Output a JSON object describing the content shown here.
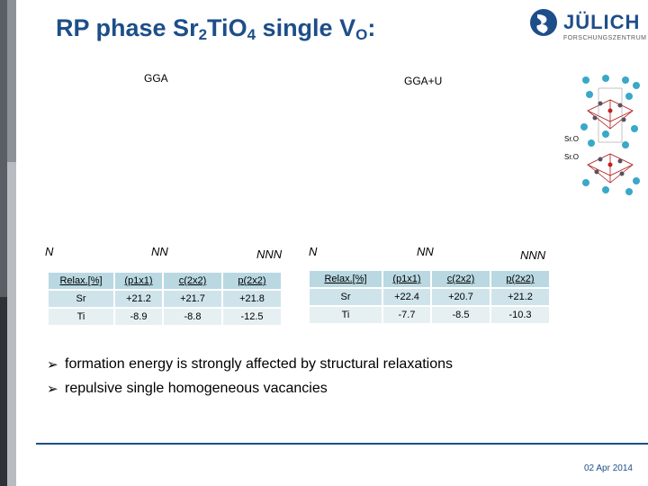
{
  "slide": {
    "title_main": "RP phase Sr",
    "title_sub1": "2",
    "title_mid1": "Ti",
    "title_mid2": "O",
    "title_sub2": "4",
    "title_rest": " single V",
    "title_sub3": "O",
    "title_colon": ":"
  },
  "logo": {
    "name": "JÜLICH",
    "subtitle": "FORSCHUNGSZENTRUM"
  },
  "labels": {
    "gga": "GGA",
    "ggau": "GGA+U",
    "sro_top": "Sr.O",
    "sro_bottom": "Sr.O",
    "n_left": "N",
    "nn_left": "NN",
    "nnn_left": "NNN",
    "n_right": "N",
    "nn_right": "NN",
    "nnn_right": "NNN"
  },
  "table_gga": {
    "header": [
      "Relax.[%]",
      "(p1x1)",
      "c(2x2)",
      "p(2x2)"
    ],
    "rows": [
      [
        "Sr",
        "+21.2",
        "+21.7",
        "+21.8"
      ],
      [
        "Ti",
        "-8.9",
        "-8.8",
        "-12.5"
      ]
    ]
  },
  "table_ggau": {
    "header": [
      "Relax.[%]",
      "(p1x1)",
      "c(2x2)",
      "p(2x2)"
    ],
    "rows": [
      [
        "Sr",
        "+22.4",
        "+20.7",
        "+21.2"
      ],
      [
        "Ti",
        "-7.7",
        "-8.5",
        "-10.3"
      ]
    ]
  },
  "bullets": [
    "formation energy is strongly affected by structural relaxations",
    "repulsive single homogeneous vacancies"
  ],
  "footer": {
    "date": "02 Apr 2014"
  },
  "colors": {
    "accent": "#1d4e89",
    "table_header": "#b9d8e2",
    "table_cell": "#cfe3ea"
  },
  "icons": {
    "bullet": "arrow-bullet-icon",
    "logo": "julich-logo-icon"
  }
}
